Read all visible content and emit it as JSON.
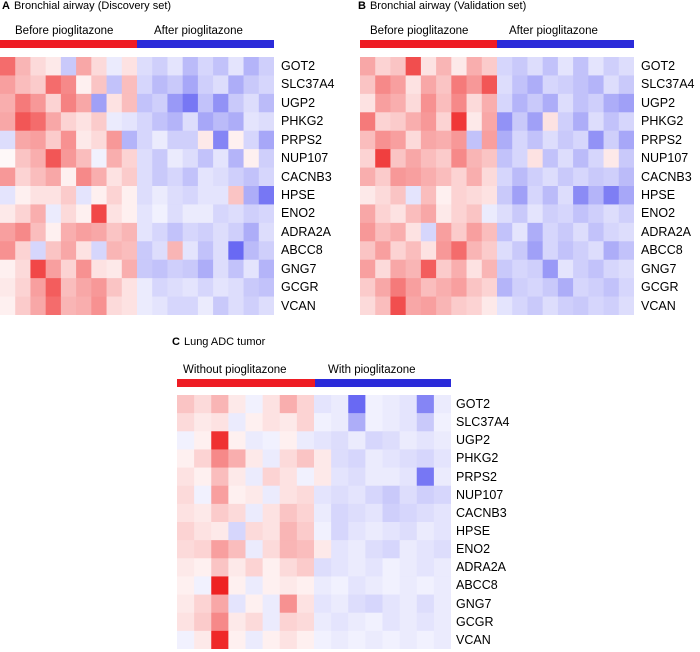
{
  "colors": {
    "red": "#ee1c24",
    "blue": "#2b2bd9"
  },
  "color_scale": {
    "low": "#3333ee",
    "mid": "#ffffff",
    "high": "#ee2222",
    "range": [
      -3,
      3
    ]
  },
  "panels": [
    {
      "letter": "A",
      "title": "Bronchial airway (Discovery set)",
      "group_left": "Before pioglitazone",
      "group_right": "After pioglitazone"
    },
    {
      "letter": "B",
      "title": "Bronchial airway (Validation set)",
      "group_left": "Before pioglitazone",
      "group_right": "After pioglitazone"
    },
    {
      "letter": "C",
      "title": "Lung ADC tumor",
      "group_left": "Without pioglitazone",
      "group_right": "With pioglitazone"
    }
  ],
  "chart_data": [
    {
      "type": "heatmap",
      "title": "Bronchial airway (Discovery set)",
      "groups": [
        {
          "name": "Before pioglitazone",
          "n": 9
        },
        {
          "name": "After pioglitazone",
          "n": 9
        }
      ],
      "rows": [
        "GOT2",
        "SLC37A4",
        "UGP2",
        "PHKG2",
        "PRPS2",
        "NUP107",
        "CACNB3",
        "HPSE",
        "ENO2",
        "ADRA2A",
        "ABCC8",
        "GNG7",
        "GCGR",
        "VCAN"
      ],
      "values": [
        [
          2,
          1,
          0.5,
          0.3,
          -0.8,
          1.2,
          0.5,
          -0.3,
          0.4,
          -0.5,
          -0.7,
          -0.4,
          -1,
          -0.6,
          -0.9,
          -0.4,
          -1.1,
          -0.7
        ],
        [
          1.3,
          0.9,
          0.7,
          2,
          1.6,
          0.2,
          0.8,
          -0.9,
          0.9,
          -0.6,
          -1,
          -0.8,
          -1.3,
          -0.7,
          -0.5,
          -1.2,
          -0.8,
          -0.6
        ],
        [
          1.1,
          1.8,
          1.4,
          0.6,
          1.7,
          1.2,
          -1.4,
          0.4,
          0.9,
          -0.9,
          -0.7,
          -1.5,
          -2,
          -0.9,
          -1.6,
          -0.8,
          -0.5,
          -1
        ],
        [
          1.2,
          2.3,
          2,
          1.2,
          0.6,
          0.4,
          0.7,
          -0.3,
          -0.4,
          -0.6,
          -0.9,
          -1.1,
          -0.5,
          -1.3,
          -1,
          -1.2,
          -0.4,
          -0.5
        ],
        [
          -0.5,
          1.2,
          1.3,
          0.7,
          1.5,
          0.3,
          0.5,
          1.4,
          -1.1,
          -0.6,
          -0.3,
          -0.7,
          -0.7,
          0.3,
          -1.8,
          0.2,
          -0.6,
          -1.3
        ],
        [
          0.1,
          0.8,
          1.1,
          2.3,
          1.4,
          0.9,
          -0.2,
          1.1,
          0.6,
          -0.5,
          -0.8,
          -0.3,
          -0.5,
          -0.9,
          -0.4,
          -1.1,
          0.2,
          -0.7
        ],
        [
          1.4,
          0.6,
          0.9,
          1.2,
          0.2,
          1.6,
          1.1,
          0.4,
          0.7,
          -0.5,
          -0.8,
          -0.6,
          -0.9,
          -0.4,
          -0.5,
          -0.7,
          -0.9,
          -0.6
        ],
        [
          -0.4,
          0.2,
          0.4,
          0.4,
          0.7,
          -0.4,
          0.2,
          0.6,
          0.2,
          -0.5,
          -0.3,
          -0.5,
          -0.6,
          -0.4,
          -0.4,
          0.8,
          -1.2,
          -2
        ],
        [
          0.3,
          0.6,
          1.1,
          -0.3,
          0.5,
          0.2,
          2.5,
          0.4,
          0.2,
          -0.4,
          -0.2,
          -0.5,
          -0.3,
          -0.3,
          -0.6,
          -0.5,
          -0.7,
          -0.6
        ],
        [
          1.3,
          1.6,
          0.9,
          0.2,
          1.1,
          1.3,
          1.2,
          0.8,
          1,
          -0.4,
          -0.6,
          -0.9,
          -0.6,
          -0.7,
          -0.5,
          -0.7,
          -1.2,
          -0.5
        ],
        [
          1.5,
          0.6,
          -0.6,
          0.8,
          1.2,
          0.4,
          -0.6,
          1,
          0.9,
          -0.8,
          -0.5,
          1,
          -0.4,
          -0.9,
          -0.5,
          -2.2,
          -1,
          -0.7
        ],
        [
          0.2,
          0.5,
          2.5,
          1.3,
          0.6,
          1.5,
          0.4,
          0.3,
          1.1,
          -0.8,
          -0.9,
          -0.7,
          -0.8,
          -1.2,
          -0.5,
          -0.9,
          -0.4,
          -1.1
        ],
        [
          0.3,
          0.6,
          1.3,
          2.2,
          0.9,
          1.2,
          1.4,
          0.8,
          0.4,
          -0.3,
          -0.6,
          -0.5,
          -0.4,
          -0.6,
          -0.4,
          -0.5,
          -0.8,
          -0.9
        ],
        [
          0.2,
          0.7,
          1.2,
          2,
          1,
          1.1,
          1.5,
          0.5,
          0.4,
          -0.3,
          -0.4,
          -0.6,
          -0.6,
          -0.3,
          -0.8,
          -0.5,
          -0.7,
          -0.5
        ]
      ]
    },
    {
      "type": "heatmap",
      "title": "Bronchial airway (Validation set)",
      "groups": [
        {
          "name": "Before pioglitazone",
          "n": 9
        },
        {
          "name": "After pioglitazone",
          "n": 9
        }
      ],
      "rows": [
        "GOT2",
        "SLC37A4",
        "UGP2",
        "PHKG2",
        "PRPS2",
        "NUP107",
        "CACNB3",
        "HPSE",
        "ENO2",
        "ADRA2A",
        "ABCC8",
        "GNG7",
        "GCGR",
        "VCAN"
      ],
      "values": [
        [
          1.2,
          0.6,
          0.8,
          2.4,
          0.4,
          1,
          0.3,
          1.1,
          0.7,
          -0.6,
          -0.8,
          -0.5,
          -0.9,
          -0.4,
          -0.9,
          -0.4,
          -0.7,
          -0.5
        ],
        [
          0.8,
          1.6,
          1.3,
          0.4,
          1.2,
          0.8,
          1.8,
          1.4,
          2.3,
          -0.5,
          -0.9,
          -1.2,
          -0.6,
          -0.7,
          -0.9,
          -1.1,
          -0.5,
          -0.8
        ],
        [
          0.4,
          1.3,
          1.1,
          0.5,
          1.5,
          0.9,
          1.6,
          0.5,
          1.1,
          -0.6,
          -1.1,
          -0.8,
          -1.2,
          -0.5,
          -0.9,
          -0.7,
          -1.2,
          -1.4
        ],
        [
          1.8,
          0.6,
          0.7,
          1.1,
          1.4,
          0.6,
          2.7,
          0.3,
          1.2,
          -1.6,
          -0.8,
          -1.4,
          0.4,
          -0.7,
          -1.2,
          -0.5,
          -0.9,
          -0.6
        ],
        [
          0.9,
          1.5,
          1.3,
          0.5,
          1.2,
          1.1,
          1.4,
          -0.9,
          1.3,
          -1.2,
          -0.6,
          -0.9,
          -0.5,
          -0.8,
          -0.6,
          -1.6,
          -0.7,
          -1.3
        ],
        [
          0.6,
          2.6,
          0.8,
          1.2,
          0.9,
          0.7,
          1.6,
          1,
          0.8,
          -0.9,
          -0.6,
          0.4,
          -0.9,
          -0.5,
          -1,
          -0.6,
          0.3,
          -0.8
        ],
        [
          1.1,
          0.7,
          1.4,
          1.3,
          1.1,
          0.9,
          0.6,
          1.1,
          0.5,
          -0.6,
          -1,
          -0.7,
          -0.5,
          -0.8,
          -0.6,
          -0.8,
          -0.7,
          -1
        ],
        [
          0.3,
          0.5,
          0.8,
          -0.4,
          0.9,
          0.2,
          0.6,
          0.5,
          0.4,
          -0.8,
          -1.4,
          -0.6,
          -1,
          -0.5,
          -1.7,
          -1.1,
          -1.9,
          -1.3
        ],
        [
          1.2,
          0.6,
          0.4,
          0.9,
          1.2,
          0.3,
          0.6,
          0.8,
          -0.3,
          -0.5,
          -0.8,
          -0.4,
          -0.7,
          -0.6,
          -0.9,
          -0.7,
          -0.5,
          -0.7
        ],
        [
          1.4,
          0.9,
          1.1,
          0.4,
          -0.6,
          1.3,
          0.7,
          1.3,
          0.9,
          -0.9,
          -0.4,
          -1.2,
          -0.6,
          -0.8,
          -0.5,
          -0.9,
          -0.6,
          -0.5
        ],
        [
          0.8,
          1.3,
          0.6,
          0.9,
          0.4,
          1.4,
          2,
          1,
          0.7,
          -0.5,
          -0.8,
          -1.4,
          -0.6,
          -0.9,
          -0.7,
          -0.5,
          -1.2,
          -0.9
        ],
        [
          1.3,
          0.5,
          1.2,
          1,
          2.2,
          0.7,
          1.1,
          0.4,
          1,
          -0.8,
          -0.6,
          -0.7,
          -1.5,
          -0.4,
          -0.7,
          -0.9,
          -0.6,
          -0.5
        ],
        [
          0.7,
          1.2,
          1.8,
          1.3,
          0.9,
          1.1,
          1.3,
          0.8,
          0.6,
          -1.1,
          -0.7,
          -0.6,
          -0.8,
          -1.2,
          -0.6,
          -0.7,
          -0.9,
          -0.6
        ],
        [
          0.5,
          0.9,
          2.4,
          1.2,
          1.3,
          1,
          0.7,
          0.6,
          0.3,
          -0.4,
          -0.6,
          -0.8,
          -0.5,
          -0.7,
          -0.8,
          -0.6,
          -0.7,
          -0.5
        ]
      ]
    },
    {
      "type": "heatmap",
      "title": "Lung ADC tumor",
      "groups": [
        {
          "name": "Without pioglitazone",
          "n": 8
        },
        {
          "name": "With pioglitazone",
          "n": 8
        }
      ],
      "rows": [
        "GOT2",
        "SLC37A4",
        "UGP2",
        "PHKG2",
        "PRPS2",
        "NUP107",
        "CACNB3",
        "HPSE",
        "ENO2",
        "ADRA2A",
        "ABCC8",
        "GNG7",
        "GCGR",
        "VCAN"
      ],
      "values": [
        [
          0.8,
          0.5,
          1,
          0.3,
          -0.2,
          0.4,
          1.1,
          0.6,
          -0.4,
          -0.3,
          -2.2,
          -0.2,
          -0.3,
          -0.4,
          -1.8,
          -0.3
        ],
        [
          0.5,
          0.3,
          0.4,
          -0.3,
          0.2,
          0.4,
          0.3,
          0.6,
          -0.2,
          -0.3,
          -1.2,
          -0.2,
          -0.3,
          -0.4,
          -0.8,
          -0.2
        ],
        [
          -0.2,
          0.2,
          2.8,
          0.2,
          -0.3,
          -0.2,
          0.2,
          -0.3,
          -0.4,
          -0.5,
          -0.3,
          -0.6,
          -0.5,
          -0.3,
          -0.4,
          -0.3
        ],
        [
          0.2,
          0.6,
          1.6,
          1.1,
          0.3,
          -0.3,
          0.5,
          0.8,
          0.3,
          -0.5,
          -0.6,
          -0.3,
          -0.4,
          -0.5,
          -0.6,
          -0.4
        ],
        [
          0.4,
          0.2,
          0.9,
          0.3,
          -0.3,
          0.6,
          0.4,
          -0.2,
          0.3,
          -0.4,
          -0.5,
          -0.3,
          -0.3,
          -0.4,
          -2,
          -0.3
        ],
        [
          0.5,
          -0.2,
          1.3,
          0.2,
          0.3,
          -0.3,
          0.4,
          0.5,
          -0.4,
          -0.5,
          -0.4,
          -0.6,
          -0.8,
          -0.5,
          -0.7,
          -0.6
        ],
        [
          0.4,
          0.3,
          0.7,
          0.5,
          -0.3,
          0.4,
          0.8,
          0.6,
          -0.3,
          -0.6,
          -0.5,
          -0.4,
          -0.7,
          -0.6,
          -0.5,
          -0.4
        ],
        [
          0.6,
          0.4,
          0.3,
          -0.6,
          0.5,
          0.4,
          1,
          0.7,
          -0.2,
          -0.6,
          -0.4,
          -0.3,
          -0.4,
          -0.5,
          -0.3,
          -0.4
        ],
        [
          0.5,
          0.6,
          1.3,
          0.9,
          -0.3,
          0.5,
          1,
          0.9,
          0.3,
          -0.4,
          -0.3,
          -0.5,
          -0.6,
          -0.3,
          -0.4,
          -0.5
        ],
        [
          0.3,
          0.2,
          0.8,
          0.3,
          0.6,
          0.2,
          0.5,
          0.7,
          -0.5,
          -0.4,
          -0.3,
          -0.4,
          -0.2,
          -0.3,
          -0.4,
          -0.3
        ],
        [
          0.2,
          -0.2,
          3,
          0.2,
          -0.3,
          0.2,
          0.3,
          0.2,
          -0.3,
          -0.2,
          -0.4,
          -0.3,
          -0.2,
          -0.3,
          -0.2,
          -0.3
        ],
        [
          0.3,
          0.6,
          1.2,
          -0.4,
          0.2,
          -0.3,
          1.5,
          0.4,
          -0.4,
          -0.3,
          -0.5,
          -0.6,
          -0.4,
          -0.3,
          -0.5,
          -0.3
        ],
        [
          0.4,
          0.7,
          1.6,
          0.3,
          0.5,
          -0.3,
          0.6,
          0.5,
          -0.3,
          -0.4,
          -0.3,
          -0.2,
          -0.4,
          -0.3,
          -0.4,
          -0.3
        ],
        [
          -0.2,
          0.3,
          2.9,
          0.2,
          -0.3,
          0.2,
          0.4,
          0.2,
          -0.2,
          -0.3,
          -0.2,
          -0.3,
          -0.2,
          -0.3,
          -0.2,
          -0.3
        ]
      ]
    }
  ]
}
